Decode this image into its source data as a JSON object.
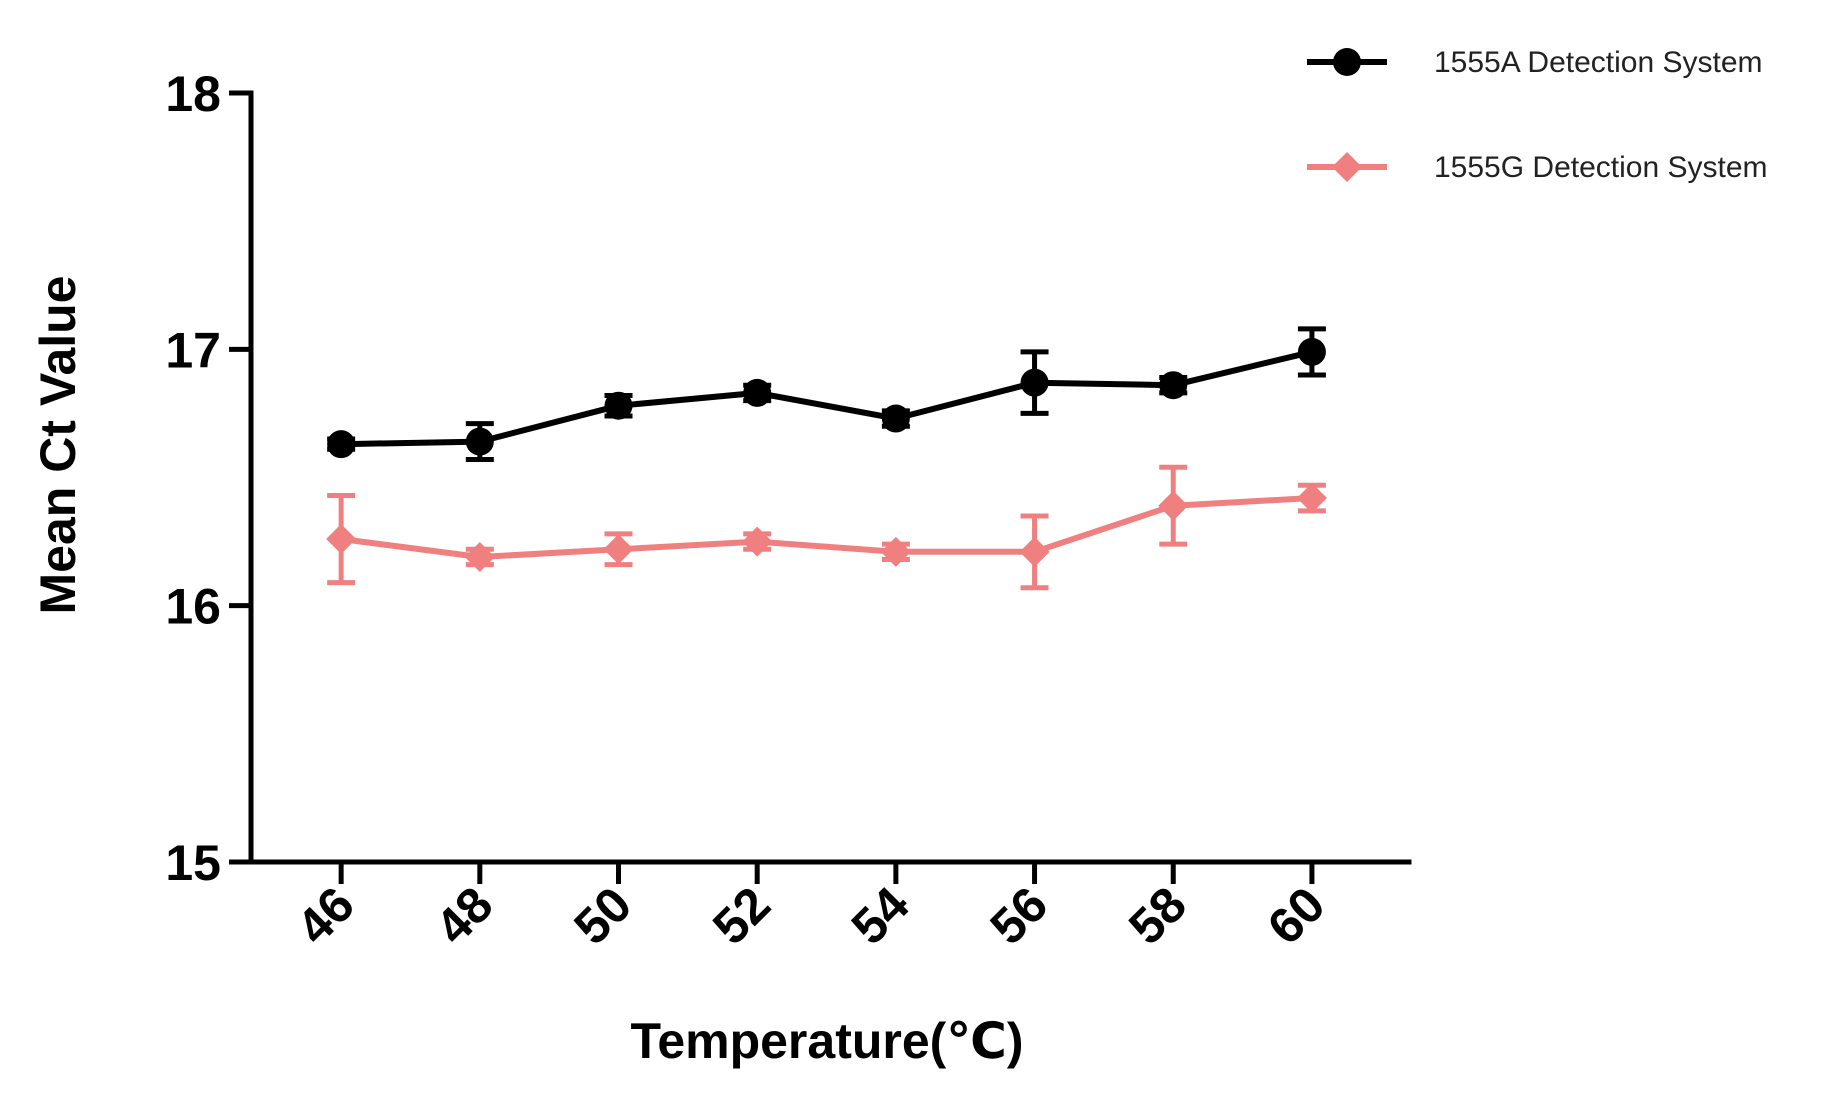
{
  "chart_data": {
    "type": "line",
    "title": "",
    "xlabel": "Temperature(℃)",
    "ylabel": "Mean Ct Value",
    "x": [
      46,
      48,
      50,
      52,
      54,
      56,
      58,
      60
    ],
    "x_tick_labels": [
      "46",
      "48",
      "50",
      "52",
      "54",
      "56",
      "58",
      "60"
    ],
    "y_ticks": [
      15,
      16,
      17,
      18
    ],
    "y_tick_labels": [
      "15",
      "16",
      "17",
      "18"
    ],
    "ylim": [
      15,
      18
    ],
    "xlim": [
      44.7,
      61.4
    ],
    "grid": false,
    "legend_position": "top-right",
    "series": [
      {
        "name": "1555A Detection System",
        "color": "#000000",
        "marker": "circle",
        "values": [
          16.63,
          16.64,
          16.78,
          16.83,
          16.73,
          16.87,
          16.86,
          16.99
        ],
        "errors": [
          0.02,
          0.07,
          0.04,
          0.03,
          0.03,
          0.12,
          0.03,
          0.09
        ]
      },
      {
        "name": "1555G Detection System",
        "color": "#f08080",
        "marker": "diamond",
        "values": [
          16.26,
          16.19,
          16.22,
          16.25,
          16.21,
          16.21,
          16.39,
          16.42
        ],
        "errors": [
          0.17,
          0.03,
          0.06,
          0.03,
          0.03,
          0.14,
          0.15,
          0.05
        ]
      }
    ]
  }
}
